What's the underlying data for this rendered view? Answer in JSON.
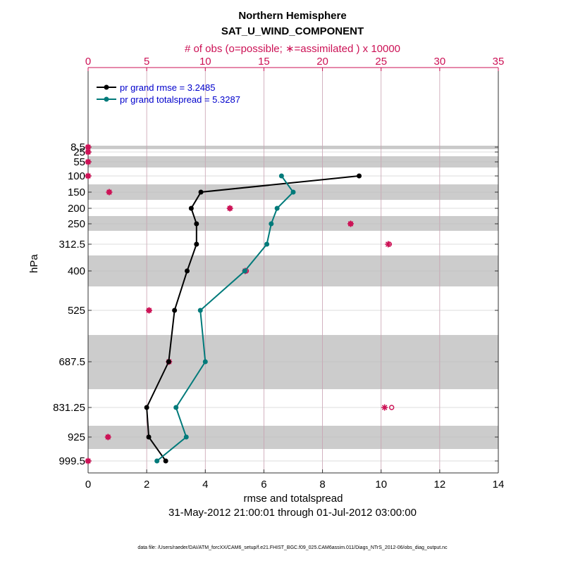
{
  "chart_data": {
    "type": "line",
    "title": "Northern Hemisphere",
    "subtitle": "SAT_U_WIND_COMPONENT",
    "top_axis_label": "# of obs (o=possible; ∗=assimilated ) x 10000",
    "xlabel": "rmse and totalspread",
    "ylabel": "hPa",
    "date_range": "31-May-2012 21:00:01 through 01-Jul-2012 03:00:00",
    "footer": "data file: /Users/raeder/DAI/ATM_forcXX/CAM6_setup/f.e21.FHIST_BGC.f09_025.CAM6assim.011/Diags_NTrS_2012-06/obs_diag_output.nc",
    "xlim": [
      0,
      14
    ],
    "x_ticks": [
      "0",
      "2",
      "4",
      "6",
      "8",
      "10",
      "12",
      "14"
    ],
    "top_xlim": [
      0,
      35
    ],
    "top_ticks": [
      "0",
      "5",
      "10",
      "15",
      "20",
      "25",
      "30",
      "35"
    ],
    "levels": [
      "8.5",
      "25",
      "55",
      "100",
      "150",
      "200",
      "250",
      "312.5",
      "400",
      "525",
      "687.5",
      "831.25",
      "925",
      "999.5"
    ],
    "legend": {
      "rmse": "pr grand rmse = 3.2485",
      "spread": "pr grand totalspread = 5.3287"
    },
    "series": [
      {
        "name": "rmse",
        "color": "#000000",
        "points": [
          {
            "level": "100",
            "value": 9.25
          },
          {
            "level": "150",
            "value": 3.85
          },
          {
            "level": "200",
            "value": 3.52
          },
          {
            "level": "250",
            "value": 3.7
          },
          {
            "level": "312.5",
            "value": 3.7
          },
          {
            "level": "400",
            "value": 3.38
          },
          {
            "level": "525",
            "value": 2.95
          },
          {
            "level": "687.5",
            "value": 2.75
          },
          {
            "level": "831.25",
            "value": 2.0
          },
          {
            "level": "925",
            "value": 2.07
          },
          {
            "level": "999.5",
            "value": 2.65
          }
        ]
      },
      {
        "name": "totalspread",
        "color": "#007a7a",
        "points": [
          {
            "level": "100",
            "value": 6.6
          },
          {
            "level": "150",
            "value": 7.0
          },
          {
            "level": "200",
            "value": 6.45
          },
          {
            "level": "250",
            "value": 6.25
          },
          {
            "level": "312.5",
            "value": 6.1
          },
          {
            "level": "400",
            "value": 5.35
          },
          {
            "level": "525",
            "value": 3.83
          },
          {
            "level": "687.5",
            "value": 4.0
          },
          {
            "level": "831.25",
            "value": 3.0
          },
          {
            "level": "925",
            "value": 3.35
          },
          {
            "level": "999.5",
            "value": 2.35
          }
        ]
      }
    ],
    "obs_count": [
      {
        "level": "8.5",
        "possible": 0.0,
        "assimilated": 0.0
      },
      {
        "level": "25",
        "possible": 0.0,
        "assimilated": 0.0
      },
      {
        "level": "55",
        "possible": 0.0,
        "assimilated": 0.0
      },
      {
        "level": "100",
        "possible": 0.0,
        "assimilated": 0.0
      },
      {
        "level": "150",
        "possible": 1.8,
        "assimilated": 1.8
      },
      {
        "level": "200",
        "possible": 12.1,
        "assimilated": 12.1
      },
      {
        "level": "250",
        "possible": 22.4,
        "assimilated": 22.4
      },
      {
        "level": "312.5",
        "possible": 25.7,
        "assimilated": 25.6
      },
      {
        "level": "400",
        "possible": 13.5,
        "assimilated": 13.4
      },
      {
        "level": "525",
        "possible": 5.2,
        "assimilated": 5.2
      },
      {
        "level": "687.5",
        "possible": 6.9,
        "assimilated": 6.9
      },
      {
        "level": "831.25",
        "possible": 25.9,
        "assimilated": 25.3
      },
      {
        "level": "925",
        "possible": 1.7,
        "assimilated": 1.7
      },
      {
        "level": "999.5",
        "possible": 0.0,
        "assimilated": 0.0
      }
    ],
    "colors": {
      "rmse": "#000000",
      "spread": "#007a7a",
      "obs": "#cc1155",
      "band": "#cccccc",
      "legend_text": "#0000cc"
    }
  }
}
